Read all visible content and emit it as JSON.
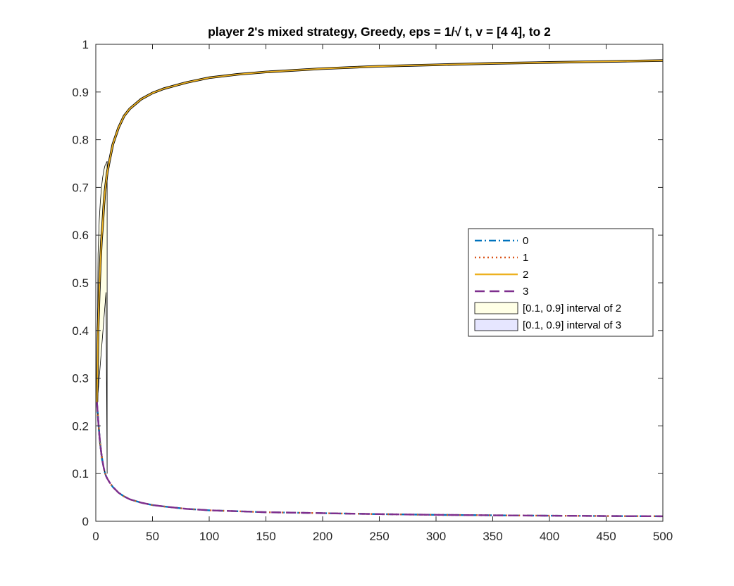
{
  "chart_data": {
    "type": "line",
    "title": "player 2's mixed strategy, Greedy, eps = 1/√ t, v = [4  4], to 2",
    "xlabel": "",
    "ylabel": "",
    "xlim": [
      0,
      500
    ],
    "ylim": [
      0,
      1
    ],
    "xticks": [
      "0",
      "50",
      "100",
      "150",
      "200",
      "250",
      "300",
      "350",
      "400",
      "450",
      "500"
    ],
    "yticks": [
      "0",
      "0.1",
      "0.2",
      "0.3",
      "0.4",
      "0.5",
      "0.6",
      "0.7",
      "0.8",
      "0.9",
      "1"
    ],
    "grid": false,
    "legend_position": "right",
    "x": [
      1,
      2,
      3,
      4,
      5,
      6,
      7,
      8,
      9,
      10,
      12,
      15,
      20,
      25,
      30,
      40,
      50,
      60,
      80,
      100,
      125,
      150,
      200,
      250,
      300,
      350,
      400,
      450,
      500
    ],
    "series": [
      {
        "name": "0",
        "style": "dash-dot",
        "color": "#0072BD",
        "values": [
          0.25,
          0.215,
          0.185,
          0.16,
          0.14,
          0.125,
          0.112,
          0.102,
          0.095,
          0.09,
          0.082,
          0.072,
          0.06,
          0.052,
          0.046,
          0.039,
          0.034,
          0.031,
          0.026,
          0.023,
          0.021,
          0.019,
          0.017,
          0.015,
          0.0135,
          0.0125,
          0.0117,
          0.011,
          0.0105
        ]
      },
      {
        "name": "1",
        "style": "dotted",
        "color": "#D95319",
        "values": [
          0.25,
          0.215,
          0.185,
          0.16,
          0.14,
          0.125,
          0.112,
          0.102,
          0.095,
          0.09,
          0.082,
          0.072,
          0.06,
          0.052,
          0.046,
          0.039,
          0.034,
          0.031,
          0.026,
          0.023,
          0.021,
          0.019,
          0.017,
          0.015,
          0.0135,
          0.0125,
          0.0117,
          0.011,
          0.0105
        ]
      },
      {
        "name": "2",
        "style": "solid",
        "color": "#EDB120",
        "values": [
          0.25,
          0.4,
          0.48,
          0.54,
          0.59,
          0.62,
          0.66,
          0.69,
          0.71,
          0.73,
          0.755,
          0.79,
          0.825,
          0.85,
          0.865,
          0.885,
          0.898,
          0.907,
          0.92,
          0.93,
          0.937,
          0.942,
          0.949,
          0.954,
          0.957,
          0.96,
          0.962,
          0.964,
          0.966
        ]
      },
      {
        "name": "3",
        "style": "dashed",
        "color": "#7E2F8E",
        "values": [
          0.25,
          0.215,
          0.185,
          0.16,
          0.14,
          0.125,
          0.112,
          0.102,
          0.095,
          0.09,
          0.082,
          0.072,
          0.06,
          0.052,
          0.046,
          0.039,
          0.034,
          0.031,
          0.026,
          0.023,
          0.021,
          0.019,
          0.017,
          0.015,
          0.0135,
          0.0125,
          0.0117,
          0.011,
          0.0105
        ]
      }
    ],
    "bands": [
      {
        "name": "[0.1, 0.9] interval of 2",
        "fill": "#FFFFE6",
        "x": [
          1,
          2,
          3,
          4,
          5,
          6,
          7,
          8,
          9,
          10
        ],
        "lower": [
          0.25,
          0.27,
          0.3,
          0.33,
          0.36,
          0.39,
          0.42,
          0.45,
          0.48,
          0.1
        ],
        "upper": [
          0.25,
          0.56,
          0.63,
          0.67,
          0.7,
          0.72,
          0.735,
          0.745,
          0.75,
          0.755
        ]
      },
      {
        "name": "[0.1, 0.9] interval of 3",
        "fill": "#E6E6FF",
        "x": [
          1,
          2,
          3,
          4,
          5,
          6,
          7,
          8,
          9,
          10
        ],
        "lower": [
          0.25,
          0.2,
          0.17,
          0.15,
          0.13,
          0.12,
          0.11,
          0.1,
          0.095,
          0.09
        ],
        "upper": [
          0.25,
          0.23,
          0.2,
          0.17,
          0.15,
          0.13,
          0.115,
          0.105,
          0.098,
          0.09
        ]
      }
    ]
  }
}
